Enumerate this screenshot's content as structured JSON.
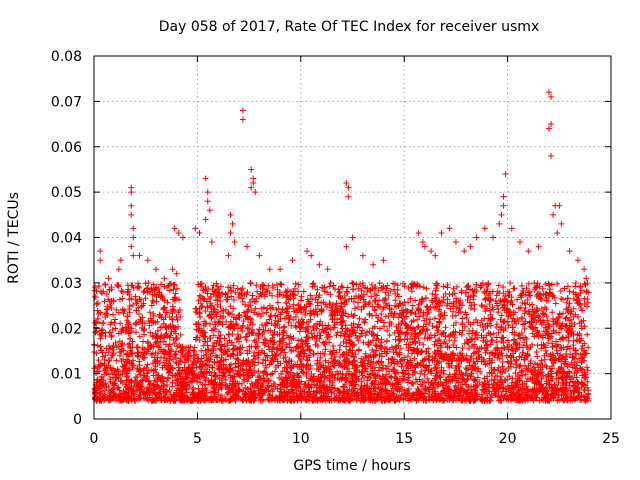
{
  "chart_data": {
    "type": "scatter",
    "title": "Day 058 of 2017, Rate Of TEC Index for receiver usmx",
    "xlabel": "GPS time / hours",
    "ylabel": "ROTI / TECUs",
    "xlim": [
      0,
      25
    ],
    "ylim": [
      0,
      0.08
    ],
    "xticks": [
      0,
      5,
      10,
      15,
      20,
      25
    ],
    "xtick_labels": [
      "0",
      "5",
      "10",
      "15",
      "20",
      "25"
    ],
    "yticks": [
      0,
      0.01,
      0.02,
      0.03,
      0.04,
      0.05,
      0.06,
      0.07,
      0.08
    ],
    "ytick_labels": [
      "0",
      "0.01",
      "0.02",
      "0.03",
      "0.04",
      "0.05",
      "0.06",
      "0.07",
      "0.08"
    ],
    "grid": true,
    "marker": "plus",
    "color": "#ff0000",
    "data_range": {
      "x_min": 0,
      "x_max": 23.9,
      "y_typical_low": 0.004,
      "y_typical_high": 0.03
    },
    "series": [
      {
        "name": "ROTI",
        "points": [
          [
            0.3,
            0.037
          ],
          [
            0.3,
            0.035
          ],
          [
            0.7,
            0.031
          ],
          [
            1.2,
            0.033
          ],
          [
            1.3,
            0.035
          ],
          [
            1.4,
            0.028
          ],
          [
            1.8,
            0.051
          ],
          [
            1.8,
            0.05
          ],
          [
            1.8,
            0.047
          ],
          [
            1.8,
            0.045
          ],
          [
            1.9,
            0.042
          ],
          [
            1.9,
            0.04
          ],
          [
            1.8,
            0.038
          ],
          [
            1.9,
            0.036
          ],
          [
            2.2,
            0.036
          ],
          [
            2.6,
            0.035
          ],
          [
            3.0,
            0.033
          ],
          [
            3.4,
            0.031
          ],
          [
            3.9,
            0.042
          ],
          [
            4.1,
            0.041
          ],
          [
            4.3,
            0.04
          ],
          [
            3.8,
            0.033
          ],
          [
            4.0,
            0.032
          ],
          [
            4.9,
            0.042
          ],
          [
            5.1,
            0.041
          ],
          [
            5.4,
            0.053
          ],
          [
            5.5,
            0.05
          ],
          [
            5.5,
            0.048
          ],
          [
            5.6,
            0.046
          ],
          [
            5.4,
            0.044
          ],
          [
            5.7,
            0.039
          ],
          [
            6.6,
            0.045
          ],
          [
            6.7,
            0.043
          ],
          [
            6.6,
            0.041
          ],
          [
            6.8,
            0.039
          ],
          [
            6.5,
            0.036
          ],
          [
            7.2,
            0.068
          ],
          [
            7.2,
            0.066
          ],
          [
            7.6,
            0.055
          ],
          [
            7.7,
            0.053
          ],
          [
            7.7,
            0.052
          ],
          [
            7.6,
            0.051
          ],
          [
            7.8,
            0.05
          ],
          [
            7.4,
            0.038
          ],
          [
            8.0,
            0.036
          ],
          [
            8.5,
            0.033
          ],
          [
            9.0,
            0.033
          ],
          [
            9.6,
            0.035
          ],
          [
            10.3,
            0.037
          ],
          [
            10.5,
            0.036
          ],
          [
            10.9,
            0.034
          ],
          [
            11.3,
            0.033
          ],
          [
            12.2,
            0.052
          ],
          [
            12.3,
            0.051
          ],
          [
            12.3,
            0.049
          ],
          [
            12.5,
            0.04
          ],
          [
            12.2,
            0.038
          ],
          [
            13.0,
            0.036
          ],
          [
            13.5,
            0.034
          ],
          [
            14.0,
            0.035
          ],
          [
            15.7,
            0.041
          ],
          [
            15.9,
            0.039
          ],
          [
            16.3,
            0.037
          ],
          [
            16.5,
            0.036
          ],
          [
            16.8,
            0.041
          ],
          [
            17.2,
            0.042
          ],
          [
            16.0,
            0.038
          ],
          [
            17.5,
            0.039
          ],
          [
            17.9,
            0.037
          ],
          [
            18.2,
            0.038
          ],
          [
            18.5,
            0.04
          ],
          [
            18.9,
            0.042
          ],
          [
            19.3,
            0.04
          ],
          [
            19.6,
            0.043
          ],
          [
            19.8,
            0.049
          ],
          [
            19.8,
            0.047
          ],
          [
            19.9,
            0.054
          ],
          [
            19.7,
            0.045
          ],
          [
            20.2,
            0.042
          ],
          [
            20.6,
            0.039
          ],
          [
            21.0,
            0.037
          ],
          [
            21.5,
            0.038
          ],
          [
            22.0,
            0.072
          ],
          [
            22.1,
            0.071
          ],
          [
            22.1,
            0.065
          ],
          [
            22.0,
            0.064
          ],
          [
            22.1,
            0.058
          ],
          [
            22.3,
            0.047
          ],
          [
            22.5,
            0.047
          ],
          [
            22.2,
            0.045
          ],
          [
            22.6,
            0.043
          ],
          [
            22.4,
            0.041
          ],
          [
            23.0,
            0.037
          ],
          [
            23.4,
            0.035
          ],
          [
            23.7,
            0.033
          ],
          [
            23.8,
            0.031
          ]
        ]
      }
    ]
  }
}
